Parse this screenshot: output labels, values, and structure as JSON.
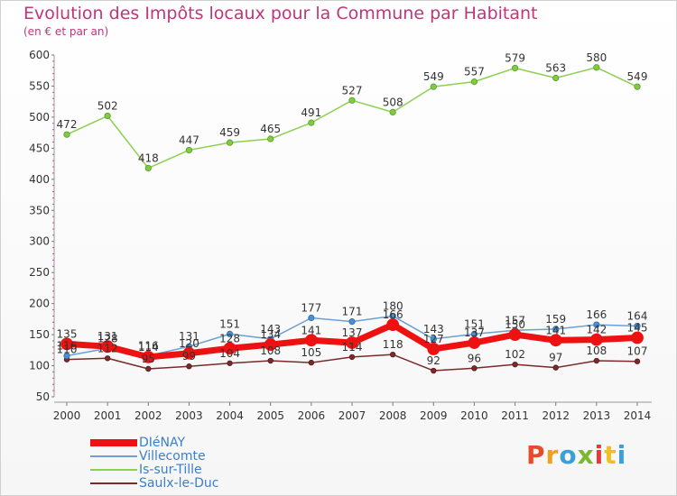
{
  "chart_data": {
    "type": "line",
    "title": "Evolution des Impôts locaux pour la Commune par Habitant",
    "subtitle": "(en € et par an)",
    "xlabel": "",
    "ylabel": "",
    "categories": [
      "2000",
      "2001",
      "2002",
      "2003",
      "2004",
      "2005",
      "2006",
      "2007",
      "2008",
      "2009",
      "2010",
      "2011",
      "2012",
      "2013",
      "2014"
    ],
    "ylim": [
      50,
      600
    ],
    "yticks": [
      50,
      100,
      150,
      200,
      250,
      300,
      350,
      400,
      450,
      500,
      550,
      600
    ],
    "grid": false,
    "legend_position": "bottom-left",
    "series": [
      {
        "name": "DIéNAY",
        "color": "#ee1111",
        "values": [
          135,
          131,
          114,
          120,
          128,
          134,
          141,
          137,
          166,
          127,
          137,
          150,
          141,
          142,
          145
        ]
      },
      {
        "name": "Villecomte",
        "color": "#4a90d0",
        "values": [
          116,
          128,
          116,
          131,
          151,
          143,
          177,
          171,
          180,
          143,
          151,
          157,
          159,
          166,
          164
        ]
      },
      {
        "name": "Is-sur-Tille",
        "color": "#80cc40",
        "values": [
          472,
          502,
          418,
          447,
          459,
          465,
          491,
          527,
          508,
          549,
          557,
          579,
          563,
          580,
          549
        ]
      },
      {
        "name": "Saulx-le-Duc",
        "color": "#7a2a2a",
        "values": [
          110,
          112,
          95,
          99,
          104,
          108,
          105,
          114,
          118,
          92,
          96,
          102,
          97,
          108,
          107
        ]
      }
    ]
  },
  "logo": {
    "text": "Proxiti",
    "letters": [
      "P",
      "r",
      "o",
      "x",
      "i",
      "t",
      "i"
    ]
  }
}
